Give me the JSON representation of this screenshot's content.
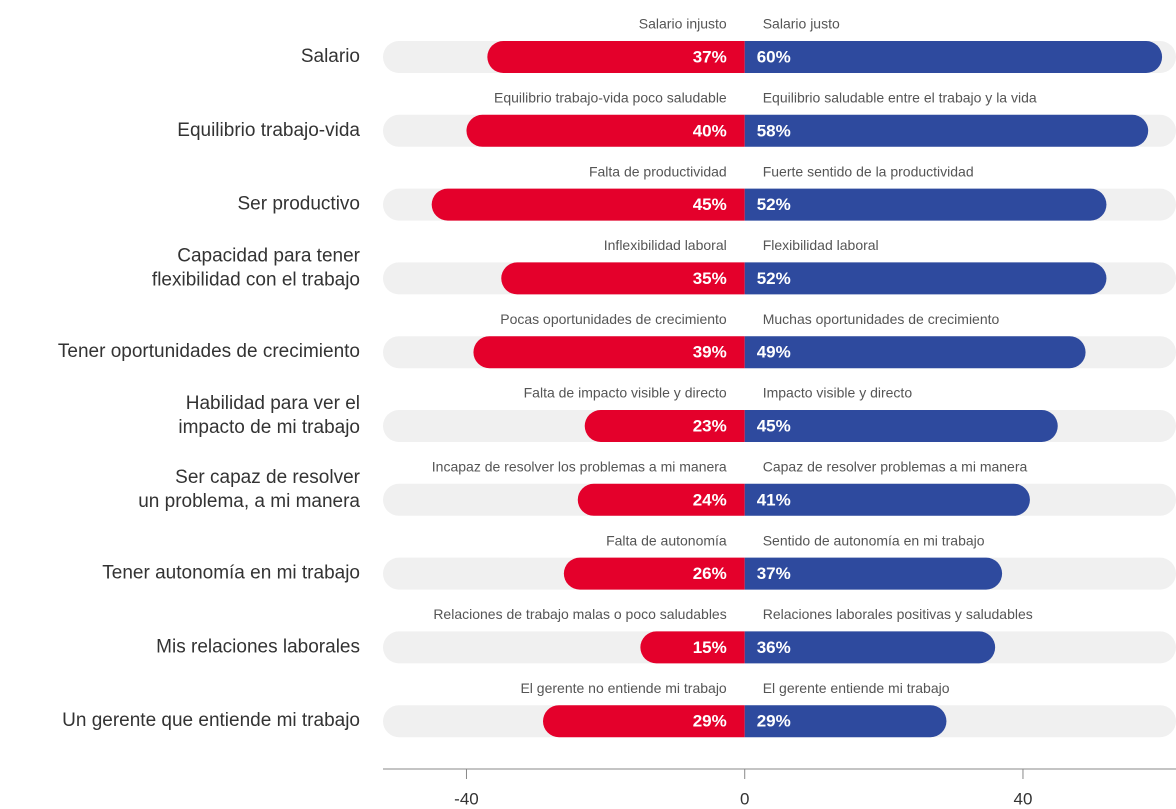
{
  "chart_data": {
    "type": "diverging-bar",
    "categories": [
      "Salario",
      "Equilibrio trabajo-vida",
      "Ser productivo",
      "Capacidad para tener\nflexibilidad con el trabajo",
      "Tener oportunidades de crecimiento",
      "Habilidad para ver el\nimpacto de mi trabajo",
      "Ser capaz de resolver\nun problema, a mi manera",
      "Tener autonomía en mi trabajo",
      "Mis relaciones laborales",
      "Un gerente que entiende mi trabajo"
    ],
    "series": [
      {
        "color": "#e4002b",
        "values": [
          -37,
          -40,
          -45,
          -35,
          -39,
          -23,
          -24,
          -26,
          -15,
          -29
        ],
        "value_labels": [
          "37%",
          "40%",
          "45%",
          "35%",
          "39%",
          "23%",
          "24%",
          "26%",
          "15%",
          "29%"
        ],
        "labels": [
          "Salario injusto",
          "Equilibrio trabajo-vida poco saludable",
          "Falta de productividad",
          "Inflexibilidad laboral",
          "Pocas oportunidades de crecimiento",
          "Falta de impacto visible y directo",
          "Incapaz de resolver los problemas a mi manera",
          "Falta de autonomía",
          "Relaciones de trabajo malas o poco saludables",
          "El gerente no entiende mi trabajo"
        ]
      },
      {
        "color": "#2e4a9e",
        "values": [
          60,
          58,
          52,
          52,
          49,
          45,
          41,
          37,
          36,
          29
        ],
        "value_labels": [
          "60%",
          "58%",
          "52%",
          "52%",
          "49%",
          "45%",
          "41%",
          "37%",
          "36%",
          "29%"
        ],
        "labels": [
          "Salario justo",
          "Equilibrio saludable entre el trabajo y la vida",
          "Fuerte sentido de la productividad",
          "Flexibilidad laboral",
          "Muchas oportunidades de crecimiento",
          "Impacto visible y directo",
          "Capaz de resolver problemas a mi manera",
          "Sentido de autonomía en mi trabajo",
          "Relaciones laborales positivas y saludables",
          "El gerente entiende mi trabajo"
        ]
      }
    ],
    "xlim": [
      -52,
      62
    ],
    "xticks": [
      -40,
      0,
      40
    ]
  }
}
